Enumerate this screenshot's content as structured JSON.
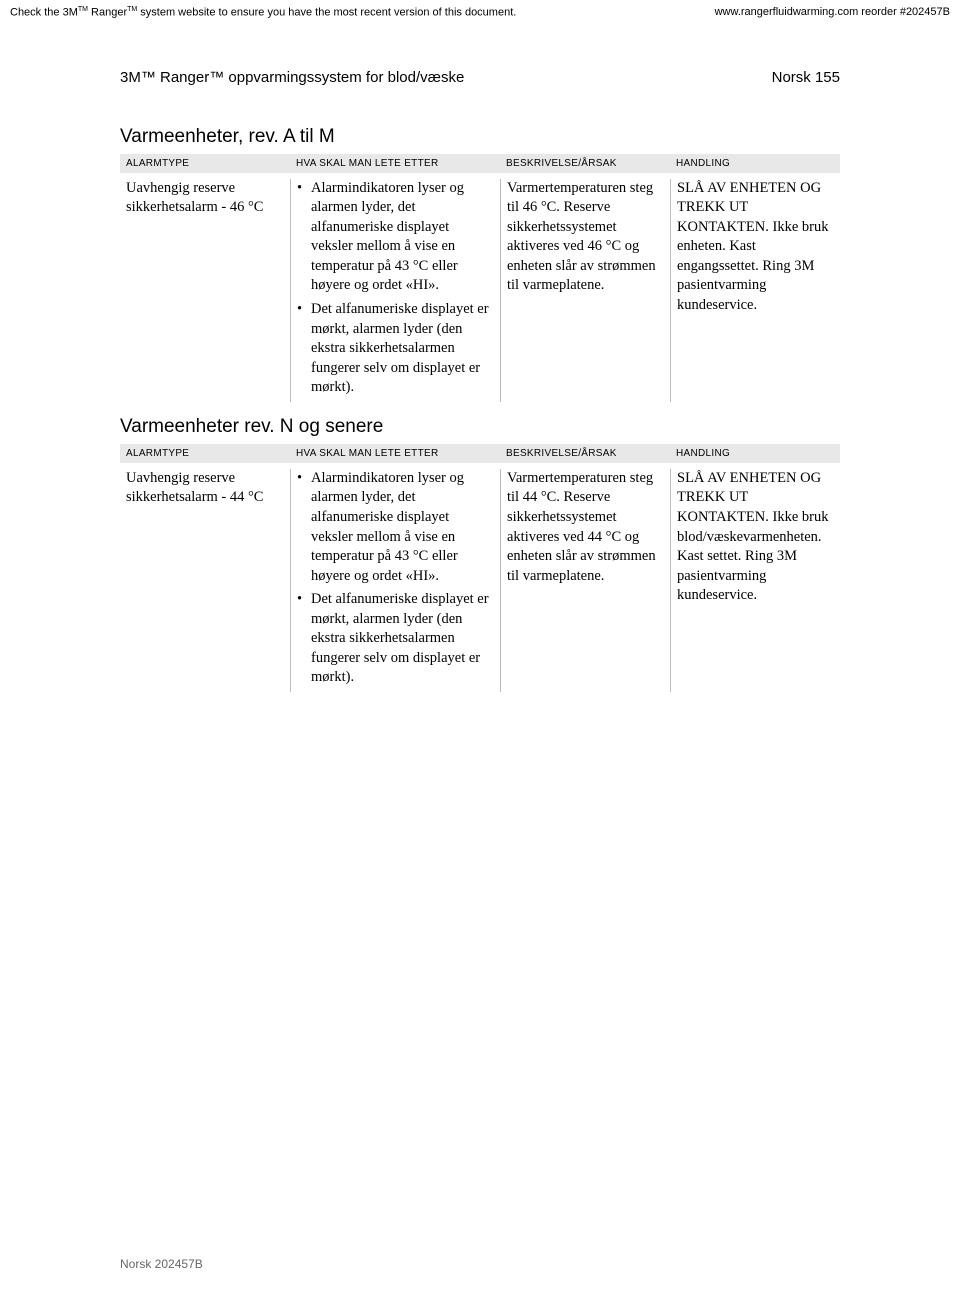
{
  "topbar": {
    "left_pre": "Check the 3M",
    "left_mid": " Ranger",
    "left_post": " system website to ensure you have the most recent version of this document.",
    "right": "www.rangerfluidwarming.com reorder #202457B",
    "tm": "TM"
  },
  "header": {
    "title_pre": "3M",
    "title_mid": " Ranger",
    "title_post": " oppvarmingssystem for blod/væske",
    "page": "Norsk 155",
    "tm": "™"
  },
  "sections": [
    {
      "title": "Varmeenheter, rev. A til M",
      "headers": {
        "c1": "ALARMTYPE",
        "c2": "HVA SKAL MAN LETE ETTER",
        "c3": "BESKRIVELSE/ÅRSAK",
        "c4": "HANDLING"
      },
      "row": {
        "alarm": "Uavhengig reserve sikkerhetsalarm - 46 °C",
        "look": [
          "Alarmindikatoren lyser og alarmen lyder, det alfanumeriske displayet veksler mellom å vise en temperatur på 43 °C eller høyere og ordet «HI».",
          "Det alfanumeriske displayet er mørkt, alarmen lyder (den ekstra sikkerhetsalarmen fungerer selv om displayet er mørkt)."
        ],
        "cause": "Varmertemperaturen steg til 46 °C. Reserve sikkerhetssystemet aktiveres ved 46 °C og enheten slår av strømmen til varmeplatene.",
        "action": "SLÅ AV ENHETEN OG TREKK UT KONTAKTEN. Ikke bruk enheten. Kast engangssettet. Ring 3M pasientvarming kundeservice."
      }
    },
    {
      "title": "Varmeenheter rev. N og senere",
      "headers": {
        "c1": "ALARMTYPE",
        "c2": "HVA SKAL MAN LETE ETTER",
        "c3": "BESKRIVELSE/ÅRSAK",
        "c4": "HANDLING"
      },
      "row": {
        "alarm": "Uavhengig reserve sikkerhetsalarm - 44 °C",
        "look": [
          "Alarmindikatoren lyser og alarmen lyder, det alfanumeriske displayet veksler mellom å vise en temperatur på 43 °C eller høyere og ordet «HI».",
          "Det alfanumeriske displayet er mørkt, alarmen lyder (den ekstra sikkerhetsalarmen fungerer selv om displayet er mørkt)."
        ],
        "cause": "Varmertemperaturen steg til 44 °C. Reserve sikkerhetssystemet aktiveres ved 44 °C og enheten slår av strømmen til varmeplatene.",
        "action": "SLÅ AV ENHETEN OG TREKK UT KONTAKTEN. Ikke bruk blod/væskevarmenheten. Kast settet. Ring 3M pasientvarming kundeservice."
      }
    }
  ],
  "footer": "Norsk 202457B"
}
